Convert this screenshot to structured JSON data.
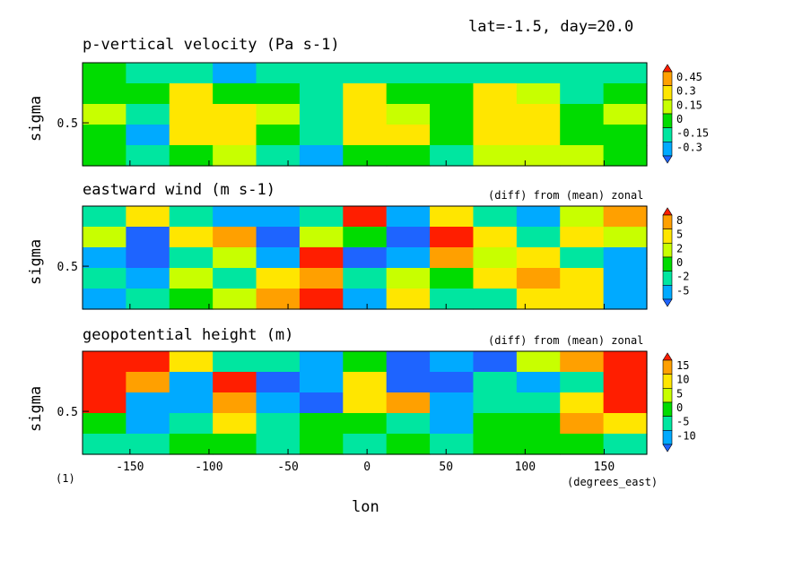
{
  "header": {
    "text": "lat=-1.5, day=20.0"
  },
  "footer": {
    "figure_number": "(1)",
    "xunits": "(degrees_east)",
    "xlabel": "lon"
  },
  "colors": {
    "levels": [
      "#1e64ff",
      "#00aaff",
      "#00e6a0",
      "#00dc00",
      "#c8ff00",
      "#ffe600",
      "#ffa000",
      "#ff1e00"
    ]
  },
  "chart_data": [
    {
      "type": "heatmap",
      "title": "p-vertical velocity (Pa s-1)",
      "subtitle": "",
      "xlabel": "lon",
      "ylabel": "sigma",
      "xlim": [
        -180,
        177
      ],
      "ylim": [
        0.2,
        0.92
      ],
      "xticks": [
        "-150",
        "-100",
        "-50",
        "0",
        "50",
        "100",
        "150"
      ],
      "xtick_values": [
        -150,
        -100,
        -50,
        0,
        50,
        100,
        150
      ],
      "yticks": [
        "0.5"
      ],
      "ytick_values": [
        0.5
      ],
      "colorbar": [
        "0.45",
        "0.3",
        "0.15",
        "0",
        "-0.15",
        "-0.3"
      ],
      "rows_sigma_top_to_bottom": [
        0.9,
        0.72,
        0.55,
        0.4,
        0.25
      ],
      "lon_values": [
        -180,
        -150,
        -120,
        -90,
        -60,
        -30,
        0,
        30,
        60,
        90,
        120,
        150,
        177
      ],
      "z": [
        [
          0.1,
          0.0,
          0.05,
          -0.1,
          0.0,
          0.05,
          0.0,
          0.0,
          0.05,
          0.0,
          0.0,
          0.05,
          0.0
        ],
        [
          0.2,
          0.1,
          0.5,
          0.2,
          0.1,
          0.0,
          0.5,
          0.1,
          0.2,
          0.4,
          0.3,
          0.0,
          0.2
        ],
        [
          0.3,
          0.0,
          0.5,
          0.5,
          0.3,
          0.0,
          0.5,
          0.3,
          0.2,
          0.5,
          0.5,
          0.1,
          0.3
        ],
        [
          0.2,
          -0.1,
          0.4,
          0.5,
          0.1,
          0.0,
          0.4,
          0.4,
          0.1,
          0.5,
          0.5,
          0.2,
          0.2
        ],
        [
          0.1,
          0.0,
          0.2,
          0.3,
          0.0,
          -0.1,
          0.2,
          0.2,
          0.0,
          0.3,
          0.3,
          0.3,
          0.1
        ]
      ]
    },
    {
      "type": "heatmap",
      "title": "eastward wind (m s-1)",
      "subtitle": "(diff) from (mean) zonal",
      "xlabel": "lon",
      "ylabel": "sigma",
      "xlim": [
        -180,
        177
      ],
      "ylim": [
        0.2,
        0.92
      ],
      "xticks": [
        "-150",
        "-100",
        "-50",
        "0",
        "50",
        "100",
        "150"
      ],
      "xtick_values": [
        -150,
        -100,
        -50,
        0,
        50,
        100,
        150
      ],
      "yticks": [
        "0.5"
      ],
      "ytick_values": [
        0.5
      ],
      "colorbar": [
        "8",
        "5",
        "2",
        "0",
        "-2",
        "-5"
      ],
      "rows_sigma_top_to_bottom": [
        0.9,
        0.72,
        0.55,
        0.4,
        0.25
      ],
      "lon_values": [
        -180,
        -150,
        -120,
        -90,
        -60,
        -30,
        0,
        30,
        60,
        90,
        120,
        150,
        177
      ],
      "z": [
        [
          -3,
          6,
          -2,
          -4,
          -5,
          -1,
          9,
          -4,
          6,
          -2,
          -4,
          3,
          7
        ],
        [
          2,
          -6,
          4,
          8,
          -6,
          2,
          1,
          -6,
          9,
          4,
          -3,
          6,
          3
        ],
        [
          -5,
          -6,
          -3,
          3,
          -4,
          9,
          -6,
          -5,
          7,
          2,
          6,
          -2,
          -4
        ],
        [
          -2,
          -4,
          2,
          -1,
          4,
          7,
          -3,
          2,
          0,
          4,
          8,
          5,
          -5
        ],
        [
          -5,
          -3,
          0,
          2,
          8,
          9,
          -5,
          4,
          -2,
          -3,
          4,
          6,
          -4
        ]
      ]
    },
    {
      "type": "heatmap",
      "title": "geopotential height (m)",
      "subtitle": "(diff) from (mean) zonal",
      "xlabel": "lon",
      "ylabel": "sigma",
      "xlim": [
        -180,
        177
      ],
      "ylim": [
        0.2,
        0.92
      ],
      "xticks": [
        "-150",
        "-100",
        "-50",
        "0",
        "50",
        "100",
        "150"
      ],
      "xtick_values": [
        -150,
        -100,
        -50,
        0,
        50,
        100,
        150
      ],
      "yticks": [
        "0.5"
      ],
      "ytick_values": [
        0.5
      ],
      "colorbar": [
        "15",
        "10",
        "5",
        "0",
        "-5",
        "-10"
      ],
      "rows_sigma_top_to_bottom": [
        0.9,
        0.72,
        0.55,
        0.4,
        0.25
      ],
      "lon_values": [
        -180,
        -150,
        -120,
        -90,
        -60,
        -30,
        0,
        30,
        60,
        90,
        120,
        150,
        177
      ],
      "z": [
        [
          18,
          20,
          12,
          -4,
          -6,
          -8,
          -2,
          -12,
          -11,
          -13,
          6,
          14,
          18
        ],
        [
          18,
          16,
          -8,
          17,
          -12,
          -11,
          12,
          -12,
          -13,
          -4,
          -10,
          -6,
          17
        ],
        [
          17,
          -10,
          -11,
          16,
          -10,
          -12,
          10,
          14,
          -11,
          -6,
          -6,
          10,
          18
        ],
        [
          2,
          -10,
          -3,
          8,
          -4,
          -2,
          0,
          -6,
          -8,
          0,
          2,
          14,
          12
        ],
        [
          -3,
          -4,
          -2,
          -1,
          -3,
          -1,
          -4,
          -2,
          -3,
          -1,
          -2,
          -2,
          -4
        ]
      ]
    }
  ]
}
